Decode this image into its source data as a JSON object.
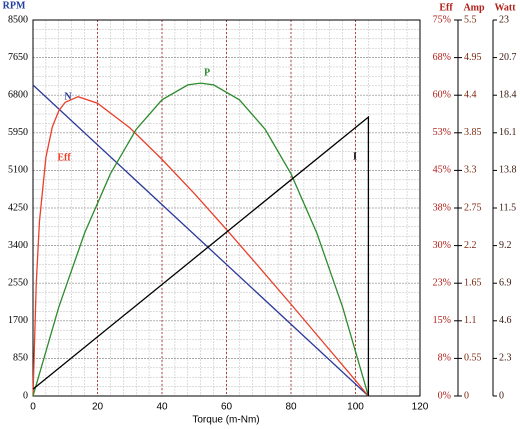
{
  "chart_data": {
    "type": "line",
    "x_label": "Torque (m-Nm)",
    "y_label": "RPM",
    "y2_label": "Eff",
    "y3_label": "Amp",
    "y4_label": "Watt",
    "xlim": [
      0,
      120
    ],
    "xticks": [
      0,
      20,
      40,
      60,
      80,
      100,
      120
    ],
    "ylim": [
      0,
      8500
    ],
    "yticks": [
      0,
      850,
      1700,
      2550,
      3400,
      4250,
      5100,
      5950,
      6800,
      7650,
      8500
    ],
    "y2lim": [
      0,
      75
    ],
    "y2ticks": [
      {
        "value": 0,
        "label": "0%"
      },
      {
        "value": 7.5,
        "label": "8%"
      },
      {
        "value": 15,
        "label": "15%"
      },
      {
        "value": 22.5,
        "label": "23%"
      },
      {
        "value": 30,
        "label": "30%"
      },
      {
        "value": 37.5,
        "label": "38%"
      },
      {
        "value": 45,
        "label": "45%"
      },
      {
        "value": 52.5,
        "label": "53%"
      },
      {
        "value": 60,
        "label": "60%"
      },
      {
        "value": 67.5,
        "label": "68%"
      },
      {
        "value": 75,
        "label": "75%"
      }
    ],
    "y3lim": [
      0,
      5.5
    ],
    "y3ticks": [
      0,
      0.55,
      1.1,
      1.65,
      2.2,
      2.75,
      3.3,
      3.85,
      4.4,
      4.95,
      5.5
    ],
    "y4lim": [
      0,
      23
    ],
    "y4ticks": [
      0,
      2.3,
      4.6,
      6.9,
      9.2,
      11.5,
      13.8,
      16.1,
      18.4,
      20.7,
      23
    ],
    "grid": true,
    "series": [
      {
        "name": "N",
        "color": "#2b3a9a",
        "axis": "y",
        "x": [
          0,
          104
        ],
        "values": [
          7030,
          0
        ]
      },
      {
        "name": "Eff",
        "color": "#e8402a",
        "axis": "y2",
        "x": [
          0,
          1,
          2,
          4,
          6,
          8,
          10,
          14,
          20,
          30,
          40,
          50,
          60,
          70,
          80,
          90,
          100,
          104
        ],
        "values": [
          0,
          22.4,
          34.8,
          47.6,
          53.7,
          56.9,
          58.6,
          59.7,
          58.4,
          53.5,
          47.2,
          40.4,
          33.2,
          25.8,
          18.3,
          10.7,
          3.1,
          0
        ]
      },
      {
        "name": "P",
        "color": "#2e8b2e",
        "axis": "y4",
        "x": [
          0,
          8,
          16,
          24,
          32,
          40,
          48,
          52,
          56,
          64,
          72,
          80,
          88,
          96,
          104
        ],
        "values": [
          0,
          5.44,
          9.97,
          13.59,
          16.31,
          18.12,
          19.03,
          19.14,
          19.03,
          18.12,
          16.31,
          13.59,
          9.97,
          5.44,
          0
        ]
      },
      {
        "name": "I",
        "color": "#000000",
        "axis": "y3",
        "x": [
          0,
          104,
          104
        ],
        "values": [
          0.1,
          4.08,
          0
        ]
      }
    ]
  }
}
